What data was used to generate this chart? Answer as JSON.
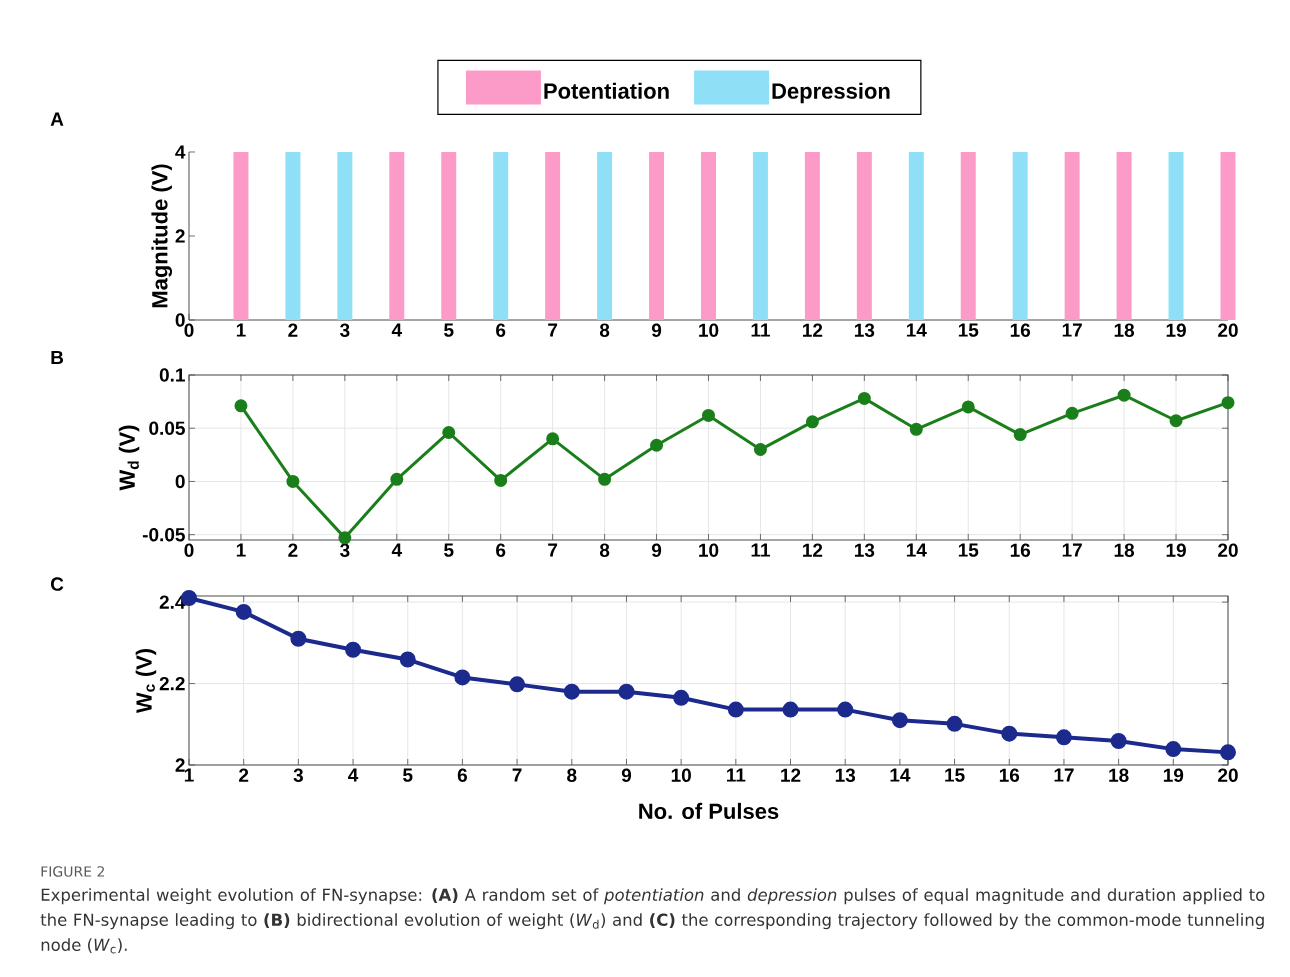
{
  "chart_data": [
    {
      "type": "bar",
      "title": "A",
      "ylabel": "Magnitude (V)",
      "xlim": [
        0,
        20
      ],
      "ylim": [
        0,
        4
      ],
      "legend": "top",
      "xticks": [
        0,
        1,
        2,
        3,
        4,
        5,
        6,
        7,
        8,
        9,
        10,
        11,
        12,
        13,
        14,
        15,
        16,
        17,
        18,
        19,
        20
      ],
      "yticks": [
        0,
        2,
        4
      ],
      "series": [
        {
          "name": "Potentiation",
          "color": "#fd9bc8",
          "x": [
            1,
            4,
            5,
            7,
            9,
            10,
            12,
            13,
            15,
            17,
            18,
            20
          ],
          "values": [
            4,
            4,
            4,
            4,
            4,
            4,
            4,
            4,
            4,
            4,
            4,
            4
          ]
        },
        {
          "name": "Depression",
          "color": "#8fe0f7",
          "x": [
            2,
            3,
            6,
            8,
            11,
            14,
            16,
            19
          ],
          "values": [
            4,
            4,
            4,
            4,
            4,
            4,
            4,
            4
          ]
        }
      ]
    },
    {
      "type": "line",
      "title": "B",
      "ylabel": "W$_{d}$ (V)",
      "xlim": [
        0,
        20
      ],
      "ylim": [
        -0.055,
        0.1
      ],
      "grid": true,
      "marker": "circle",
      "xticks": [
        0,
        1,
        2,
        3,
        4,
        5,
        6,
        7,
        8,
        9,
        10,
        11,
        12,
        13,
        14,
        15,
        16,
        17,
        18,
        19,
        20
      ],
      "yticks": [
        -0.05,
        0,
        0.05,
        0.1
      ],
      "x": [
        1,
        2,
        3,
        4,
        5,
        6,
        7,
        8,
        9,
        10,
        11,
        12,
        13,
        14,
        15,
        16,
        17,
        18,
        19,
        20
      ],
      "series": [
        {
          "color": "#1a7f1a",
          "values": [
            0.071,
            0.0,
            -0.053,
            0.002,
            0.046,
            0.001,
            0.04,
            0.002,
            0.034,
            0.062,
            0.03,
            0.056,
            0.078,
            0.049,
            0.07,
            0.044,
            0.064,
            0.081,
            0.057,
            0.074
          ]
        }
      ]
    },
    {
      "type": "line",
      "title": "C",
      "ylabel": "W$_{c}$ (V)",
      "xlabel": "No. of Pulses",
      "xlim": [
        1,
        20
      ],
      "ylim": [
        2,
        2.415
      ],
      "grid": true,
      "marker": "circle",
      "xticks": [
        1,
        2,
        3,
        4,
        5,
        6,
        7,
        8,
        9,
        10,
        11,
        12,
        13,
        14,
        15,
        16,
        17,
        18,
        19,
        20
      ],
      "yticks": [
        2,
        2.2,
        2.4
      ],
      "x": [
        1,
        2,
        3,
        4,
        5,
        6,
        7,
        8,
        9,
        10,
        11,
        12,
        13,
        14,
        15,
        16,
        17,
        18,
        19,
        20
      ],
      "series": [
        {
          "color": "#1b2a8c",
          "values": [
            2.41,
            2.376,
            2.31,
            2.283,
            2.259,
            2.215,
            2.198,
            2.18,
            2.18,
            2.165,
            2.136,
            2.136,
            2.136,
            2.11,
            2.101,
            2.077,
            2.068,
            2.059,
            2.039,
            2.031
          ]
        }
      ],
      "annotations": [
        "FIGURE 2",
        "Experimental weight evolution of FN-synapse: **(A)** A random set of *potentiation* and *depression* pulses of equal magnitude and duration applied to the FN-synapse leading to **(B)** bidirectional evolution of weight (*W*$_{d}$) and **(C)** the corresponding trajectory followed by the common-mode tunneling node (*W*$_{c}$)."
      ]
    }
  ]
}
